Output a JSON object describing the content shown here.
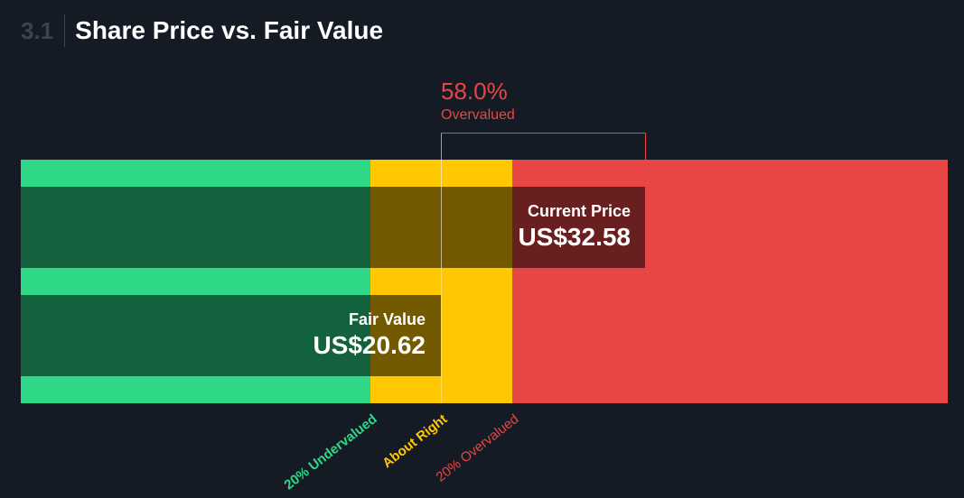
{
  "header": {
    "section_number": "3.1",
    "title": "Share Price vs. Fair Value"
  },
  "valuation": {
    "percent": "58.0%",
    "label": "Overvalued"
  },
  "current_price": {
    "label": "Current Price",
    "value": "US$32.58"
  },
  "fair_value": {
    "label": "Fair Value",
    "value": "US$20.62"
  },
  "zones": {
    "undervalued_label": "20% Undervalued",
    "about_right_label": "About Right",
    "overvalued_label": "20% Overvalued"
  },
  "colors": {
    "green": "#2ed887",
    "yellow": "#ffc800",
    "red": "#e84545",
    "background": "#151b24"
  },
  "chart_data": {
    "type": "bar",
    "categories": [
      "Current Price",
      "Fair Value"
    ],
    "values": [
      32.58,
      20.62
    ],
    "unit": "US$",
    "zones": [
      {
        "name": "20% Undervalued",
        "color": "#2ed887"
      },
      {
        "name": "About Right",
        "color": "#ffc800"
      },
      {
        "name": "20% Overvalued",
        "color": "#e84545"
      }
    ],
    "difference_percent": 58.0
  }
}
